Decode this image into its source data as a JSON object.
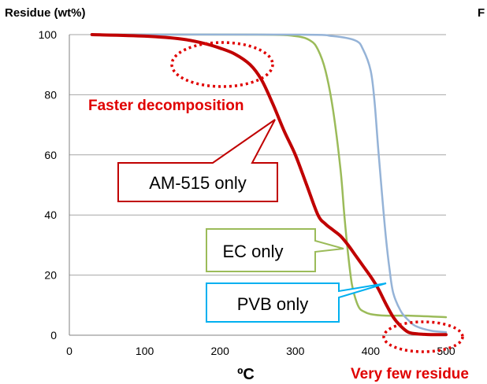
{
  "chart_data": {
    "type": "line",
    "ylabel": "Residue (wt%)",
    "xlabel": "ºC",
    "corner_label": "F",
    "xlim": [
      0,
      500
    ],
    "ylim": [
      0,
      100
    ],
    "xticks": [
      0,
      100,
      200,
      300,
      400,
      500
    ],
    "yticks": [
      0,
      20,
      40,
      60,
      80,
      100
    ],
    "grid": true,
    "series": [
      {
        "name": "AM-515 only",
        "color": "#c00000",
        "x": [
          30,
          100,
          150,
          180,
          200,
          220,
          240,
          255,
          270,
          285,
          300,
          315,
          330,
          340,
          350,
          360,
          370,
          380,
          390,
          400,
          410,
          420,
          430,
          440,
          450,
          460,
          470,
          480,
          500
        ],
        "y": [
          100,
          99.5,
          98.5,
          97,
          95.5,
          93.5,
          90,
          85,
          77,
          68,
          60,
          50,
          40,
          37,
          35,
          33,
          30,
          26.5,
          23,
          19.5,
          15.5,
          10.5,
          6,
          3,
          1,
          0.5,
          0.3,
          0.2,
          0.2
        ]
      },
      {
        "name": "EC only",
        "color": "#9bbb59",
        "x": [
          30,
          250,
          300,
          320,
          330,
          340,
          350,
          360,
          365,
          370,
          375,
          380,
          385,
          390,
          400,
          420,
          450,
          500
        ],
        "y": [
          100,
          100,
          99.5,
          98,
          95,
          88,
          75,
          55,
          40,
          27,
          17,
          12,
          9,
          8,
          7,
          6.5,
          6.5,
          6
        ]
      },
      {
        "name": "PVB only",
        "color": "#95b3d7",
        "x": [
          30,
          300,
          350,
          380,
          390,
          400,
          405,
          410,
          415,
          420,
          425,
          430,
          440,
          450,
          460,
          480,
          500
        ],
        "y": [
          100,
          100,
          99.5,
          98,
          95,
          88,
          78,
          62,
          47,
          33,
          22,
          14,
          8,
          5,
          3,
          1.5,
          1
        ]
      }
    ],
    "annotations": {
      "faster": "Faster decomposition",
      "am_box": "AM-515 only",
      "ec_box": "EC only",
      "pvb_box": "PVB only",
      "few_residue": "Very few residue"
    },
    "colors": {
      "annotation_red": "#e00000",
      "grid": "#a6a6a6",
      "axis": "#808080"
    }
  }
}
